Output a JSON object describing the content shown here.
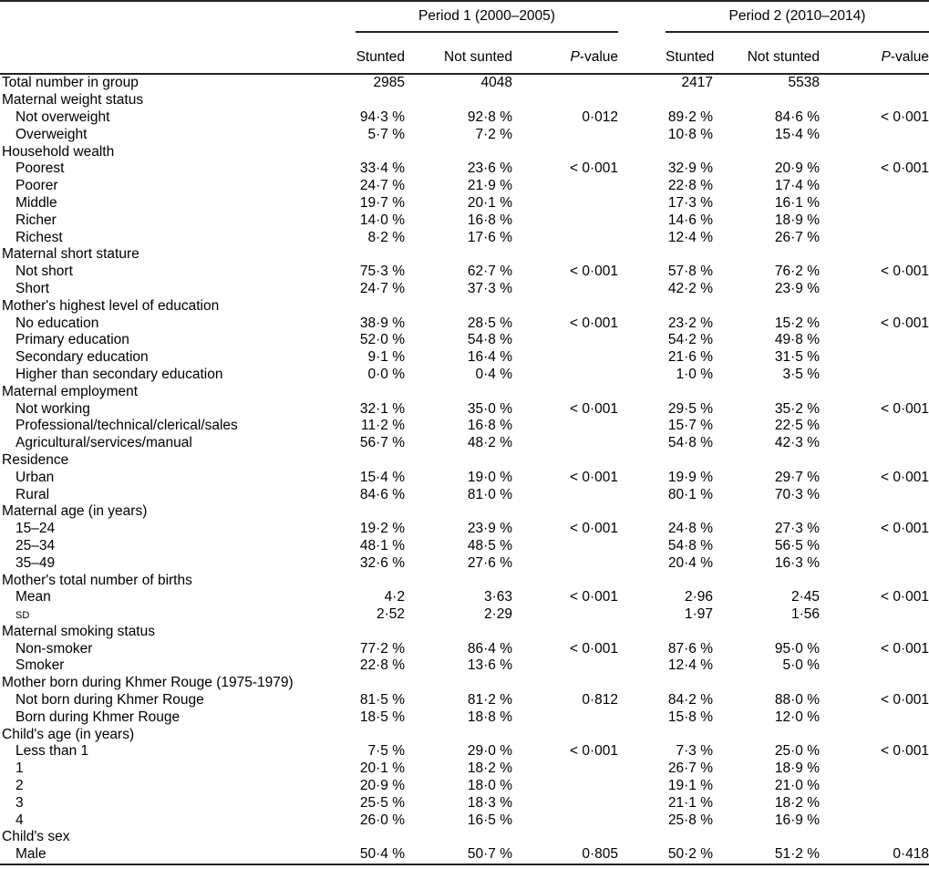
{
  "table": {
    "groups": [
      {
        "label": "Period 1 (2000–2005)"
      },
      {
        "label": "Period 2 (2010–2014)"
      }
    ],
    "columns": [
      "Stunted",
      "Not sunted",
      "P-value",
      "Stunted",
      "Not stunted",
      "P-value"
    ],
    "rows": [
      {
        "label": "Total number in group",
        "indent": false,
        "smallcaps": false,
        "values": [
          "2985",
          "4048",
          "",
          "2417",
          "5538",
          ""
        ]
      },
      {
        "label": "Maternal weight status",
        "indent": false,
        "smallcaps": false,
        "values": [
          "",
          "",
          "",
          "",
          "",
          ""
        ]
      },
      {
        "label": "Not overweight",
        "indent": true,
        "smallcaps": false,
        "values": [
          "94·3 %",
          "92·8 %",
          "0·012",
          "89·2 %",
          "84·6 %",
          "< 0·001"
        ]
      },
      {
        "label": "Overweight",
        "indent": true,
        "smallcaps": false,
        "values": [
          "5·7 %",
          "7·2 %",
          "",
          "10·8 %",
          "15·4 %",
          ""
        ]
      },
      {
        "label": "Household wealth",
        "indent": false,
        "smallcaps": false,
        "values": [
          "",
          "",
          "",
          "",
          "",
          ""
        ]
      },
      {
        "label": "Poorest",
        "indent": true,
        "smallcaps": false,
        "values": [
          "33·4 %",
          "23·6 %",
          "< 0·001",
          "32·9 %",
          "20·9 %",
          "< 0·001"
        ]
      },
      {
        "label": "Poorer",
        "indent": true,
        "smallcaps": false,
        "values": [
          "24·7 %",
          "21·9 %",
          "",
          "22·8 %",
          "17·4 %",
          ""
        ]
      },
      {
        "label": "Middle",
        "indent": true,
        "smallcaps": false,
        "values": [
          "19·7 %",
          "20·1 %",
          "",
          "17·3 %",
          "16·1 %",
          ""
        ]
      },
      {
        "label": "Richer",
        "indent": true,
        "smallcaps": false,
        "values": [
          "14·0 %",
          "16·8 %",
          "",
          "14·6 %",
          "18·9 %",
          ""
        ]
      },
      {
        "label": "Richest",
        "indent": true,
        "smallcaps": false,
        "values": [
          "8·2 %",
          "17·6 %",
          "",
          "12·4 %",
          "26·7 %",
          ""
        ]
      },
      {
        "label": "Maternal short stature",
        "indent": false,
        "smallcaps": false,
        "values": [
          "",
          "",
          "",
          "",
          "",
          ""
        ]
      },
      {
        "label": "Not short",
        "indent": true,
        "smallcaps": false,
        "values": [
          "75·3 %",
          "62·7 %",
          "< 0·001",
          "57·8 %",
          "76·2 %",
          "< 0·001"
        ]
      },
      {
        "label": "Short",
        "indent": true,
        "smallcaps": false,
        "values": [
          "24·7 %",
          "37·3 %",
          "",
          "42·2 %",
          "23·9 %",
          ""
        ]
      },
      {
        "label": "Mother's highest level of education",
        "indent": false,
        "smallcaps": false,
        "values": [
          "",
          "",
          "",
          "",
          "",
          ""
        ]
      },
      {
        "label": "No education",
        "indent": true,
        "smallcaps": false,
        "values": [
          "38·9 %",
          "28·5 %",
          "< 0·001",
          "23·2 %",
          "15·2 %",
          "< 0·001"
        ]
      },
      {
        "label": "Primary education",
        "indent": true,
        "smallcaps": false,
        "values": [
          "52·0 %",
          "54·8 %",
          "",
          "54·2 %",
          "49·8 %",
          ""
        ]
      },
      {
        "label": "Secondary education",
        "indent": true,
        "smallcaps": false,
        "values": [
          "9·1 %",
          "16·4 %",
          "",
          "21·6 %",
          "31·5 %",
          ""
        ]
      },
      {
        "label": "Higher than secondary education",
        "indent": true,
        "smallcaps": false,
        "values": [
          "0·0 %",
          "0·4 %",
          "",
          "1·0 %",
          "3·5 %",
          ""
        ]
      },
      {
        "label": "Maternal employment",
        "indent": false,
        "smallcaps": false,
        "values": [
          "",
          "",
          "",
          "",
          "",
          ""
        ]
      },
      {
        "label": "Not working",
        "indent": true,
        "smallcaps": false,
        "values": [
          "32·1 %",
          "35·0 %",
          "< 0·001",
          "29·5 %",
          "35·2 %",
          "< 0·001"
        ]
      },
      {
        "label": "Professional/technical/clerical/sales",
        "indent": true,
        "smallcaps": false,
        "values": [
          "11·2 %",
          "16·8 %",
          "",
          "15·7 %",
          "22·5 %",
          ""
        ]
      },
      {
        "label": "Agricultural/services/manual",
        "indent": true,
        "smallcaps": false,
        "values": [
          "56·7 %",
          "48·2 %",
          "",
          "54·8 %",
          "42·3 %",
          ""
        ]
      },
      {
        "label": "Residence",
        "indent": false,
        "smallcaps": false,
        "values": [
          "",
          "",
          "",
          "",
          "",
          ""
        ]
      },
      {
        "label": "Urban",
        "indent": true,
        "smallcaps": false,
        "values": [
          "15·4 %",
          "19·0 %",
          "< 0·001",
          "19·9 %",
          "29·7 %",
          "< 0·001"
        ]
      },
      {
        "label": "Rural",
        "indent": true,
        "smallcaps": false,
        "values": [
          "84·6 %",
          "81·0 %",
          "",
          "80·1 %",
          "70·3 %",
          ""
        ]
      },
      {
        "label": "Maternal age (in years)",
        "indent": false,
        "smallcaps": false,
        "values": [
          "",
          "",
          "",
          "",
          "",
          ""
        ]
      },
      {
        "label": "15–24",
        "indent": true,
        "smallcaps": false,
        "values": [
          "19·2 %",
          "23·9 %",
          "< 0·001",
          "24·8 %",
          "27·3 %",
          "< 0·001"
        ]
      },
      {
        "label": "25–34",
        "indent": true,
        "smallcaps": false,
        "values": [
          "48·1 %",
          "48·5 %",
          "",
          "54·8 %",
          "56·5 %",
          ""
        ]
      },
      {
        "label": "35–49",
        "indent": true,
        "smallcaps": false,
        "values": [
          "32·6 %",
          "27·6 %",
          "",
          "20·4 %",
          "16·3 %",
          ""
        ]
      },
      {
        "label": "Mother's total number of births",
        "indent": false,
        "smallcaps": false,
        "values": [
          "",
          "",
          "",
          "",
          "",
          ""
        ]
      },
      {
        "label": "Mean",
        "indent": true,
        "smallcaps": false,
        "values": [
          "4·2",
          "3·63",
          "< 0·001",
          "2·96",
          "2·45",
          "< 0·001"
        ]
      },
      {
        "label": "SD",
        "indent": true,
        "smallcaps": true,
        "values": [
          "2·52",
          "2·29",
          "",
          "1·97",
          "1·56",
          ""
        ]
      },
      {
        "label": "Maternal smoking status",
        "indent": false,
        "smallcaps": false,
        "values": [
          "",
          "",
          "",
          "",
          "",
          ""
        ]
      },
      {
        "label": "Non-smoker",
        "indent": true,
        "smallcaps": false,
        "values": [
          "77·2 %",
          "86·4 %",
          "< 0·001",
          "87·6 %",
          "95·0 %",
          "< 0·001"
        ]
      },
      {
        "label": "Smoker",
        "indent": true,
        "smallcaps": false,
        "values": [
          "22·8 %",
          "13·6 %",
          "",
          "12·4 %",
          "5·0 %",
          ""
        ]
      },
      {
        "label": "Mother born during Khmer Rouge (1975-1979)",
        "indent": false,
        "smallcaps": false,
        "values": [
          "",
          "",
          "",
          "",
          "",
          ""
        ]
      },
      {
        "label": "Not born during Khmer Rouge",
        "indent": true,
        "smallcaps": false,
        "values": [
          "81·5 %",
          "81·2 %",
          "0·812",
          "84·2 %",
          "88·0 %",
          "< 0·001"
        ]
      },
      {
        "label": "Born during Khmer Rouge",
        "indent": true,
        "smallcaps": false,
        "values": [
          "18·5 %",
          "18·8 %",
          "",
          "15·8 %",
          "12·0 %",
          ""
        ]
      },
      {
        "label": "Child's age (in years)",
        "indent": false,
        "smallcaps": false,
        "values": [
          "",
          "",
          "",
          "",
          "",
          ""
        ]
      },
      {
        "label": "Less than 1",
        "indent": true,
        "smallcaps": false,
        "values": [
          "7·5 %",
          "29·0 %",
          "< 0·001",
          "7·3 %",
          "25·0 %",
          "< 0·001"
        ]
      },
      {
        "label": "1",
        "indent": true,
        "smallcaps": false,
        "values": [
          "20·1 %",
          "18·2 %",
          "",
          "26·7 %",
          "18·9 %",
          ""
        ]
      },
      {
        "label": "2",
        "indent": true,
        "smallcaps": false,
        "values": [
          "20·9 %",
          "18·0 %",
          "",
          "19·1 %",
          "21·0 %",
          ""
        ]
      },
      {
        "label": "3",
        "indent": true,
        "smallcaps": false,
        "values": [
          "25·5 %",
          "18·3 %",
          "",
          "21·1 %",
          "18·2 %",
          ""
        ]
      },
      {
        "label": "4",
        "indent": true,
        "smallcaps": false,
        "values": [
          "26·0 %",
          "16·5 %",
          "",
          "25·8 %",
          "16·9 %",
          ""
        ]
      },
      {
        "label": "Child's sex",
        "indent": false,
        "smallcaps": false,
        "values": [
          "",
          "",
          "",
          "",
          "",
          ""
        ]
      },
      {
        "label": "Male",
        "indent": true,
        "smallcaps": false,
        "values": [
          "50·4 %",
          "50·7 %",
          "0·805",
          "50·2 %",
          "51·2 %",
          "0·418"
        ]
      }
    ]
  }
}
